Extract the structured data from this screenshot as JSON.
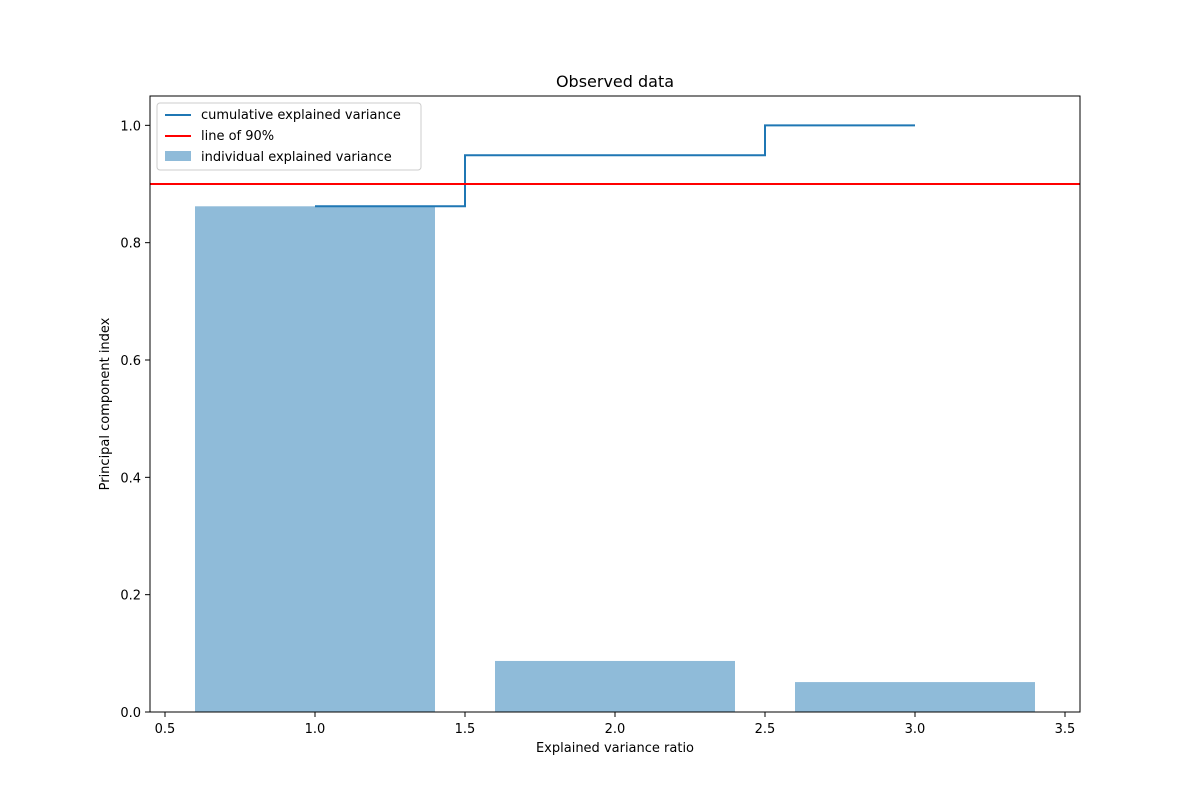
{
  "chart_data": {
    "type": "bar",
    "title": "Observed data",
    "xlabel": "Explained variance ratio",
    "ylabel": "Principal component index",
    "xlim": [
      0.45,
      3.55
    ],
    "ylim": [
      0.0,
      1.05
    ],
    "xticks": [
      0.5,
      1.0,
      1.5,
      2.0,
      2.5,
      3.0,
      3.5
    ],
    "xtick_labels": [
      "0.5",
      "1.0",
      "1.5",
      "2.0",
      "2.5",
      "3.0",
      "3.5"
    ],
    "yticks": [
      0.0,
      0.2,
      0.4,
      0.6,
      0.8,
      1.0
    ],
    "ytick_labels": [
      "0.0",
      "0.2",
      "0.4",
      "0.6",
      "0.8",
      "1.0"
    ],
    "grid": false,
    "legend_position": "top-left",
    "bars": {
      "name": "individual explained variance",
      "x": [
        1,
        2,
        3
      ],
      "values": [
        0.862,
        0.087,
        0.051
      ],
      "width": 0.8,
      "color": "#1f77b4",
      "alpha": 0.5
    },
    "step_line": {
      "name": "cumulative explained variance",
      "x": [
        1,
        2,
        3
      ],
      "values": [
        0.862,
        0.949,
        1.0
      ],
      "where": "mid",
      "color": "#1f77b4"
    },
    "hline": {
      "name": "line of 90%",
      "y": 0.9,
      "color": "#ff0000"
    }
  }
}
